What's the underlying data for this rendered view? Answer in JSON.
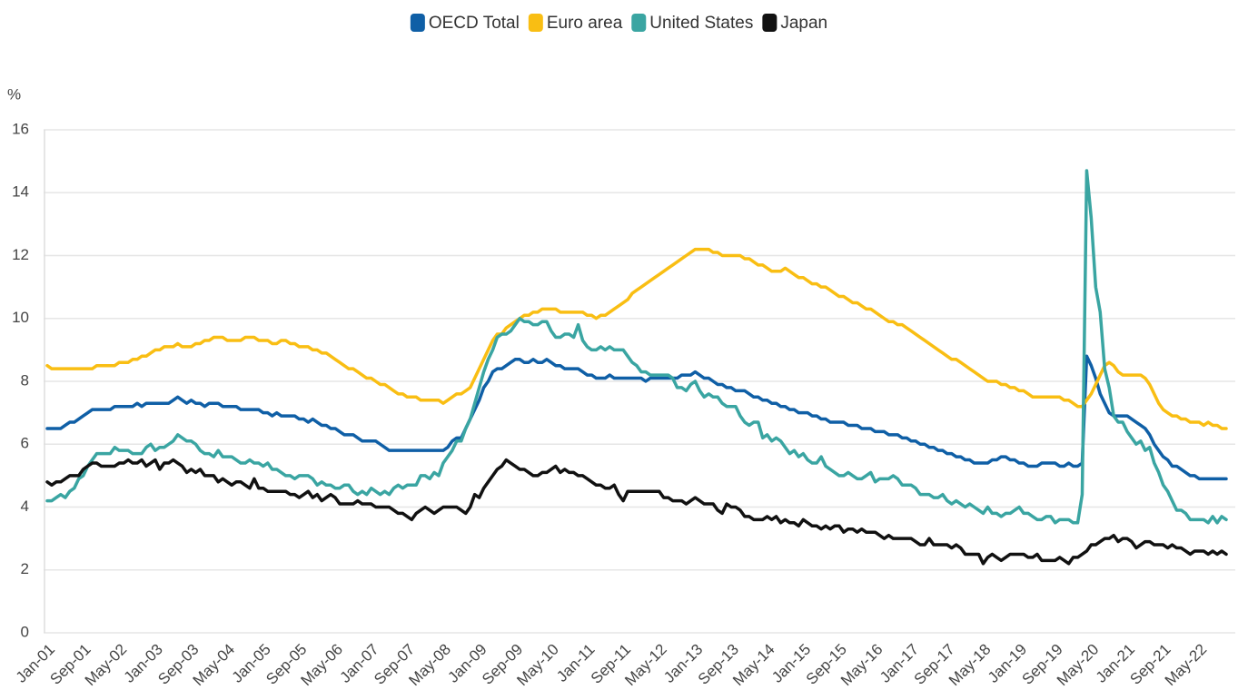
{
  "chart_data": {
    "type": "line",
    "y_label": "%",
    "legend": "top",
    "grid": true,
    "ylim": [
      0,
      16
    ],
    "yticks": [
      0,
      2,
      4,
      6,
      8,
      10,
      12,
      14,
      16
    ],
    "categories": [
      "Jan-01",
      null,
      null,
      null,
      null,
      null,
      null,
      null,
      "Sep-01",
      null,
      null,
      null,
      null,
      null,
      null,
      null,
      "May-02",
      null,
      null,
      null,
      null,
      null,
      null,
      null,
      "Jan-03",
      null,
      null,
      null,
      null,
      null,
      null,
      null,
      "Sep-03",
      null,
      null,
      null,
      null,
      null,
      null,
      null,
      "May-04",
      null,
      null,
      null,
      null,
      null,
      null,
      null,
      "Jan-05",
      null,
      null,
      null,
      null,
      null,
      null,
      null,
      "Sep-05",
      null,
      null,
      null,
      null,
      null,
      null,
      null,
      "May-06",
      null,
      null,
      null,
      null,
      null,
      null,
      null,
      "Jan-07",
      null,
      null,
      null,
      null,
      null,
      null,
      null,
      "Sep-07",
      null,
      null,
      null,
      null,
      null,
      null,
      null,
      "May-08",
      null,
      null,
      null,
      null,
      null,
      null,
      null,
      "Jan-09",
      null,
      null,
      null,
      null,
      null,
      null,
      null,
      "Sep-09",
      null,
      null,
      null,
      null,
      null,
      null,
      null,
      "May-10",
      null,
      null,
      null,
      null,
      null,
      null,
      null,
      "Jan-11",
      null,
      null,
      null,
      null,
      null,
      null,
      null,
      "Sep-11",
      null,
      null,
      null,
      null,
      null,
      null,
      null,
      "May-12",
      null,
      null,
      null,
      null,
      null,
      null,
      null,
      "Jan-13",
      null,
      null,
      null,
      null,
      null,
      null,
      null,
      "Sep-13",
      null,
      null,
      null,
      null,
      null,
      null,
      null,
      "May-14",
      null,
      null,
      null,
      null,
      null,
      null,
      null,
      "Jan-15",
      null,
      null,
      null,
      null,
      null,
      null,
      null,
      "Sep-15",
      null,
      null,
      null,
      null,
      null,
      null,
      null,
      "May-16",
      null,
      null,
      null,
      null,
      null,
      null,
      null,
      "Jan-17",
      null,
      null,
      null,
      null,
      null,
      null,
      null,
      "Sep-17",
      null,
      null,
      null,
      null,
      null,
      null,
      null,
      "May-18",
      null,
      null,
      null,
      null,
      null,
      null,
      null,
      "Jan-19",
      null,
      null,
      null,
      null,
      null,
      null,
      null,
      "Sep-19",
      null,
      null,
      null,
      null,
      null,
      null,
      null,
      "May-20",
      null,
      null,
      null,
      null,
      null,
      null,
      null,
      "Jan-21",
      null,
      null,
      null,
      null,
      null,
      null,
      null,
      "Sep-21",
      null,
      null,
      null,
      null,
      null,
      null,
      null,
      "May-22",
      null,
      null,
      null,
      null,
      null,
      null
    ],
    "series": [
      {
        "name": "OECD Total",
        "color": "#0f5fa6",
        "values": [
          6.5,
          6.5,
          6.5,
          6.5,
          6.6,
          6.7,
          6.7,
          6.8,
          6.9,
          7.0,
          7.1,
          7.1,
          7.1,
          7.1,
          7.1,
          7.2,
          7.2,
          7.2,
          7.2,
          7.2,
          7.3,
          7.2,
          7.3,
          7.3,
          7.3,
          7.3,
          7.3,
          7.3,
          7.4,
          7.5,
          7.4,
          7.3,
          7.4,
          7.3,
          7.3,
          7.2,
          7.3,
          7.3,
          7.3,
          7.2,
          7.2,
          7.2,
          7.2,
          7.1,
          7.1,
          7.1,
          7.1,
          7.1,
          7.0,
          7.0,
          6.9,
          7.0,
          6.9,
          6.9,
          6.9,
          6.9,
          6.8,
          6.8,
          6.7,
          6.8,
          6.7,
          6.6,
          6.6,
          6.5,
          6.5,
          6.4,
          6.3,
          6.3,
          6.3,
          6.2,
          6.1,
          6.1,
          6.1,
          6.1,
          6.0,
          5.9,
          5.8,
          5.8,
          5.8,
          5.8,
          5.8,
          5.8,
          5.8,
          5.8,
          5.8,
          5.8,
          5.8,
          5.8,
          5.8,
          5.9,
          6.1,
          6.2,
          6.2,
          6.5,
          6.8,
          7.1,
          7.4,
          7.8,
          8.0,
          8.3,
          8.4,
          8.4,
          8.5,
          8.6,
          8.7,
          8.7,
          8.6,
          8.6,
          8.7,
          8.6,
          8.6,
          8.7,
          8.6,
          8.5,
          8.5,
          8.4,
          8.4,
          8.4,
          8.4,
          8.3,
          8.2,
          8.2,
          8.1,
          8.1,
          8.1,
          8.2,
          8.1,
          8.1,
          8.1,
          8.1,
          8.1,
          8.1,
          8.1,
          8.0,
          8.1,
          8.1,
          8.1,
          8.1,
          8.1,
          8.1,
          8.1,
          8.2,
          8.2,
          8.2,
          8.3,
          8.2,
          8.1,
          8.1,
          8.0,
          7.9,
          7.9,
          7.8,
          7.8,
          7.7,
          7.7,
          7.7,
          7.6,
          7.5,
          7.5,
          7.4,
          7.4,
          7.3,
          7.3,
          7.2,
          7.2,
          7.1,
          7.1,
          7.0,
          7.0,
          7.0,
          6.9,
          6.9,
          6.8,
          6.8,
          6.7,
          6.7,
          6.7,
          6.7,
          6.6,
          6.6,
          6.6,
          6.5,
          6.5,
          6.5,
          6.4,
          6.4,
          6.4,
          6.3,
          6.3,
          6.3,
          6.2,
          6.2,
          6.1,
          6.1,
          6.0,
          6.0,
          5.9,
          5.9,
          5.8,
          5.8,
          5.7,
          5.7,
          5.6,
          5.6,
          5.5,
          5.5,
          5.4,
          5.4,
          5.4,
          5.4,
          5.5,
          5.5,
          5.6,
          5.6,
          5.5,
          5.5,
          5.4,
          5.4,
          5.3,
          5.3,
          5.3,
          5.4,
          5.4,
          5.4,
          5.4,
          5.3,
          5.3,
          5.4,
          5.3,
          5.3,
          5.4,
          8.8,
          8.5,
          8.1,
          7.6,
          7.3,
          7.0,
          6.9,
          6.9,
          6.9,
          6.9,
          6.8,
          6.7,
          6.6,
          6.5,
          6.3,
          6.0,
          5.8,
          5.6,
          5.5,
          5.3,
          5.3,
          5.2,
          5.1,
          5.0,
          5.0,
          4.9,
          4.9,
          4.9,
          4.9,
          4.9,
          4.9,
          4.9
        ]
      },
      {
        "name": "Euro area",
        "color": "#f9be13",
        "values": [
          8.5,
          8.4,
          8.4,
          8.4,
          8.4,
          8.4,
          8.4,
          8.4,
          8.4,
          8.4,
          8.4,
          8.5,
          8.5,
          8.5,
          8.5,
          8.5,
          8.6,
          8.6,
          8.6,
          8.7,
          8.7,
          8.8,
          8.8,
          8.9,
          9.0,
          9.0,
          9.1,
          9.1,
          9.1,
          9.2,
          9.1,
          9.1,
          9.1,
          9.2,
          9.2,
          9.3,
          9.3,
          9.4,
          9.4,
          9.4,
          9.3,
          9.3,
          9.3,
          9.3,
          9.4,
          9.4,
          9.4,
          9.3,
          9.3,
          9.3,
          9.2,
          9.2,
          9.3,
          9.3,
          9.2,
          9.2,
          9.1,
          9.1,
          9.1,
          9.0,
          9.0,
          8.9,
          8.9,
          8.8,
          8.7,
          8.6,
          8.5,
          8.4,
          8.4,
          8.3,
          8.2,
          8.1,
          8.1,
          8.0,
          7.9,
          7.9,
          7.8,
          7.7,
          7.6,
          7.6,
          7.5,
          7.5,
          7.5,
          7.4,
          7.4,
          7.4,
          7.4,
          7.4,
          7.3,
          7.4,
          7.5,
          7.6,
          7.6,
          7.7,
          7.8,
          8.1,
          8.4,
          8.7,
          9.0,
          9.3,
          9.5,
          9.5,
          9.7,
          9.8,
          9.9,
          10.0,
          10.1,
          10.1,
          10.2,
          10.2,
          10.3,
          10.3,
          10.3,
          10.3,
          10.2,
          10.2,
          10.2,
          10.2,
          10.2,
          10.2,
          10.1,
          10.1,
          10.0,
          10.1,
          10.1,
          10.2,
          10.3,
          10.4,
          10.5,
          10.6,
          10.8,
          10.9,
          11.0,
          11.1,
          11.2,
          11.3,
          11.4,
          11.5,
          11.6,
          11.7,
          11.8,
          11.9,
          12.0,
          12.1,
          12.2,
          12.2,
          12.2,
          12.2,
          12.1,
          12.1,
          12.0,
          12.0,
          12.0,
          12.0,
          12.0,
          11.9,
          11.9,
          11.8,
          11.7,
          11.7,
          11.6,
          11.5,
          11.5,
          11.5,
          11.6,
          11.5,
          11.4,
          11.3,
          11.3,
          11.2,
          11.1,
          11.1,
          11.0,
          11.0,
          10.9,
          10.8,
          10.7,
          10.7,
          10.6,
          10.5,
          10.5,
          10.4,
          10.3,
          10.3,
          10.2,
          10.1,
          10.0,
          9.9,
          9.9,
          9.8,
          9.8,
          9.7,
          9.6,
          9.5,
          9.4,
          9.3,
          9.2,
          9.1,
          9.0,
          8.9,
          8.8,
          8.7,
          8.7,
          8.6,
          8.5,
          8.4,
          8.3,
          8.2,
          8.1,
          8.0,
          8.0,
          8.0,
          7.9,
          7.9,
          7.8,
          7.8,
          7.7,
          7.7,
          7.6,
          7.5,
          7.5,
          7.5,
          7.5,
          7.5,
          7.5,
          7.5,
          7.4,
          7.4,
          7.3,
          7.2,
          7.2,
          7.4,
          7.6,
          7.9,
          8.2,
          8.5,
          8.6,
          8.5,
          8.3,
          8.2,
          8.2,
          8.2,
          8.2,
          8.2,
          8.1,
          7.9,
          7.6,
          7.3,
          7.1,
          7.0,
          6.9,
          6.9,
          6.8,
          6.8,
          6.7,
          6.7,
          6.7,
          6.6,
          6.7,
          6.6,
          6.6,
          6.5,
          6.5
        ]
      },
      {
        "name": "United States",
        "color": "#3aa5a2",
        "values": [
          4.2,
          4.2,
          4.3,
          4.4,
          4.3,
          4.5,
          4.6,
          4.9,
          5.0,
          5.3,
          5.5,
          5.7,
          5.7,
          5.7,
          5.7,
          5.9,
          5.8,
          5.8,
          5.8,
          5.7,
          5.7,
          5.7,
          5.9,
          6.0,
          5.8,
          5.9,
          5.9,
          6.0,
          6.1,
          6.3,
          6.2,
          6.1,
          6.1,
          6.0,
          5.8,
          5.7,
          5.7,
          5.6,
          5.8,
          5.6,
          5.6,
          5.6,
          5.5,
          5.4,
          5.4,
          5.5,
          5.4,
          5.4,
          5.3,
          5.4,
          5.2,
          5.2,
          5.1,
          5.0,
          5.0,
          4.9,
          5.0,
          5.0,
          5.0,
          4.9,
          4.7,
          4.8,
          4.7,
          4.7,
          4.6,
          4.6,
          4.7,
          4.7,
          4.5,
          4.4,
          4.5,
          4.4,
          4.6,
          4.5,
          4.4,
          4.5,
          4.4,
          4.6,
          4.7,
          4.6,
          4.7,
          4.7,
          4.7,
          5.0,
          5.0,
          4.9,
          5.1,
          5.0,
          5.4,
          5.6,
          5.8,
          6.1,
          6.1,
          6.5,
          6.8,
          7.3,
          7.8,
          8.3,
          8.7,
          9.0,
          9.4,
          9.5,
          9.5,
          9.6,
          9.8,
          10.0,
          9.9,
          9.9,
          9.8,
          9.8,
          9.9,
          9.9,
          9.6,
          9.4,
          9.4,
          9.5,
          9.5,
          9.4,
          9.8,
          9.3,
          9.1,
          9.0,
          9.0,
          9.1,
          9.0,
          9.1,
          9.0,
          9.0,
          9.0,
          8.8,
          8.6,
          8.5,
          8.3,
          8.3,
          8.2,
          8.2,
          8.2,
          8.2,
          8.2,
          8.1,
          7.8,
          7.8,
          7.7,
          7.9,
          8.0,
          7.7,
          7.5,
          7.6,
          7.5,
          7.5,
          7.3,
          7.2,
          7.2,
          7.2,
          6.9,
          6.7,
          6.6,
          6.7,
          6.7,
          6.2,
          6.3,
          6.1,
          6.2,
          6.1,
          5.9,
          5.7,
          5.8,
          5.6,
          5.7,
          5.5,
          5.4,
          5.4,
          5.6,
          5.3,
          5.2,
          5.1,
          5.0,
          5.0,
          5.1,
          5.0,
          4.9,
          4.9,
          5.0,
          5.1,
          4.8,
          4.9,
          4.9,
          4.9,
          5.0,
          4.9,
          4.7,
          4.7,
          4.7,
          4.6,
          4.4,
          4.4,
          4.4,
          4.3,
          4.3,
          4.4,
          4.2,
          4.1,
          4.2,
          4.1,
          4.0,
          4.1,
          4.0,
          3.9,
          3.8,
          4.0,
          3.8,
          3.8,
          3.7,
          3.8,
          3.8,
          3.9,
          4.0,
          3.8,
          3.8,
          3.7,
          3.6,
          3.6,
          3.7,
          3.7,
          3.5,
          3.6,
          3.6,
          3.6,
          3.5,
          3.5,
          4.4,
          14.7,
          13.2,
          11.0,
          10.2,
          8.4,
          7.8,
          6.9,
          6.7,
          6.7,
          6.4,
          6.2,
          6.0,
          6.1,
          5.8,
          5.9,
          5.4,
          5.1,
          4.7,
          4.5,
          4.2,
          3.9,
          3.9,
          3.8,
          3.6,
          3.6,
          3.6,
          3.6,
          3.5,
          3.7,
          3.5,
          3.7,
          3.6
        ]
      },
      {
        "name": "Japan",
        "color": "#111111",
        "values": [
          4.8,
          4.7,
          4.8,
          4.8,
          4.9,
          5.0,
          5.0,
          5.0,
          5.2,
          5.3,
          5.4,
          5.4,
          5.3,
          5.3,
          5.3,
          5.3,
          5.4,
          5.4,
          5.5,
          5.4,
          5.4,
          5.5,
          5.3,
          5.4,
          5.5,
          5.2,
          5.4,
          5.4,
          5.5,
          5.4,
          5.3,
          5.1,
          5.2,
          5.1,
          5.2,
          5.0,
          5.0,
          5.0,
          4.8,
          4.9,
          4.8,
          4.7,
          4.8,
          4.8,
          4.7,
          4.6,
          4.9,
          4.6,
          4.6,
          4.5,
          4.5,
          4.5,
          4.5,
          4.5,
          4.4,
          4.4,
          4.3,
          4.4,
          4.5,
          4.3,
          4.4,
          4.2,
          4.3,
          4.4,
          4.3,
          4.1,
          4.1,
          4.1,
          4.1,
          4.2,
          4.1,
          4.1,
          4.1,
          4.0,
          4.0,
          4.0,
          4.0,
          3.9,
          3.8,
          3.8,
          3.7,
          3.6,
          3.8,
          3.9,
          4.0,
          3.9,
          3.8,
          3.9,
          4.0,
          4.0,
          4.0,
          4.0,
          3.9,
          3.8,
          4.0,
          4.4,
          4.3,
          4.6,
          4.8,
          5.0,
          5.2,
          5.3,
          5.5,
          5.4,
          5.3,
          5.2,
          5.2,
          5.1,
          5.0,
          5.0,
          5.1,
          5.1,
          5.2,
          5.3,
          5.1,
          5.2,
          5.1,
          5.1,
          5.0,
          5.0,
          4.9,
          4.8,
          4.7,
          4.7,
          4.6,
          4.6,
          4.7,
          4.4,
          4.2,
          4.5,
          4.5,
          4.5,
          4.5,
          4.5,
          4.5,
          4.5,
          4.5,
          4.3,
          4.3,
          4.2,
          4.2,
          4.2,
          4.1,
          4.2,
          4.3,
          4.2,
          4.1,
          4.1,
          4.1,
          3.9,
          3.8,
          4.1,
          4.0,
          4.0,
          3.9,
          3.7,
          3.7,
          3.6,
          3.6,
          3.6,
          3.7,
          3.6,
          3.7,
          3.5,
          3.6,
          3.5,
          3.5,
          3.4,
          3.6,
          3.5,
          3.4,
          3.4,
          3.3,
          3.4,
          3.3,
          3.4,
          3.4,
          3.2,
          3.3,
          3.3,
          3.2,
          3.3,
          3.2,
          3.2,
          3.2,
          3.1,
          3.0,
          3.1,
          3.0,
          3.0,
          3.0,
          3.0,
          3.0,
          2.9,
          2.8,
          2.8,
          3.0,
          2.8,
          2.8,
          2.8,
          2.8,
          2.7,
          2.8,
          2.7,
          2.5,
          2.5,
          2.5,
          2.5,
          2.2,
          2.4,
          2.5,
          2.4,
          2.3,
          2.4,
          2.5,
          2.5,
          2.5,
          2.5,
          2.4,
          2.4,
          2.5,
          2.3,
          2.3,
          2.3,
          2.3,
          2.4,
          2.3,
          2.2,
          2.4,
          2.4,
          2.5,
          2.6,
          2.8,
          2.8,
          2.9,
          3.0,
          3.0,
          3.1,
          2.9,
          3.0,
          3.0,
          2.9,
          2.7,
          2.8,
          2.9,
          2.9,
          2.8,
          2.8,
          2.8,
          2.7,
          2.8,
          2.7,
          2.7,
          2.6,
          2.5,
          2.6,
          2.6,
          2.6,
          2.5,
          2.6,
          2.5,
          2.6,
          2.5
        ]
      }
    ]
  }
}
